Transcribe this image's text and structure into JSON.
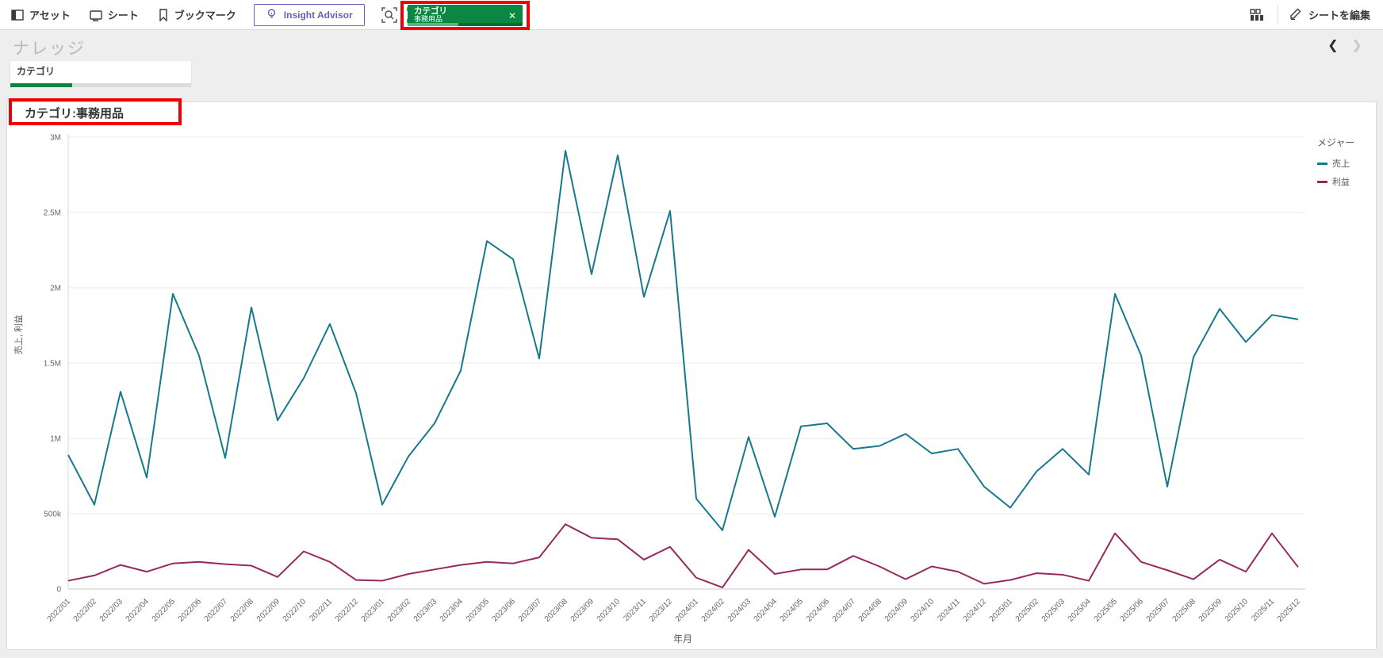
{
  "toolbar": {
    "items": [
      {
        "label": "アセット"
      },
      {
        "label": "シート"
      },
      {
        "label": "ブックマーク"
      }
    ],
    "insight_advisor_label": "Insight Advisor",
    "selection_chip": {
      "field": "カテゴリ",
      "value": "事務用品",
      "close": "✕"
    },
    "edit_sheet_label": "シートを編集"
  },
  "sheet": {
    "title": "ナレッジ",
    "prev": "❮",
    "next": "❯"
  },
  "filter": {
    "label": "カテゴリ"
  },
  "legend": {
    "title": "メジャー"
  },
  "colors": {
    "selection_green": "#0a8742",
    "selection_green_light": "#5cb57f",
    "accent_purple": "#6e5cb8",
    "annotation_red": "#f20000",
    "series_sales": "#17798c",
    "series_profit": "#96295f"
  },
  "chart_data": {
    "type": "line",
    "title": "カテゴリ:事務用品",
    "xlabel": "年月",
    "ylabel": "売上, 利益",
    "ylim": [
      0,
      3000000
    ],
    "ytick_labels": [
      "0",
      "500k",
      "1M",
      "1.5M",
      "2M",
      "2.5M",
      "3M"
    ],
    "grid": true,
    "legend_position": "top-right",
    "x": [
      "2022/01",
      "2022/02",
      "2022/03",
      "2022/04",
      "2022/05",
      "2022/06",
      "2022/07",
      "2022/08",
      "2022/09",
      "2022/10",
      "2022/11",
      "2022/12",
      "2023/01",
      "2023/02",
      "2023/03",
      "2023/04",
      "2023/05",
      "2023/06",
      "2023/07",
      "2023/08",
      "2023/09",
      "2023/10",
      "2023/11",
      "2023/12",
      "2024/01",
      "2024/02",
      "2024/03",
      "2024/04",
      "2024/05",
      "2024/06",
      "2024/07",
      "2024/08",
      "2024/09",
      "2024/10",
      "2024/11",
      "2024/12",
      "2025/01",
      "2025/02",
      "2025/03",
      "2025/04",
      "2025/05",
      "2025/06",
      "2025/07",
      "2025/08",
      "2025/09",
      "2025/10",
      "2025/11",
      "2025/12"
    ],
    "series": [
      {
        "name": "売上",
        "color": "#17798c",
        "values": [
          890000,
          560000,
          1310000,
          740000,
          1960000,
          1550000,
          870000,
          1870000,
          1120000,
          1400000,
          1760000,
          1300000,
          560000,
          880000,
          1100000,
          1450000,
          2310000,
          2190000,
          1530000,
          2910000,
          2090000,
          2880000,
          1940000,
          2510000,
          600000,
          390000,
          1010000,
          480000,
          1080000,
          1100000,
          930000,
          950000,
          1030000,
          900000,
          930000,
          680000,
          540000,
          780000,
          930000,
          760000,
          1960000,
          1550000,
          680000,
          1540000,
          1860000,
          1640000,
          1820000,
          1790000
        ]
      },
      {
        "name": "利益",
        "color": "#96295f",
        "values": [
          55000,
          90000,
          160000,
          115000,
          170000,
          180000,
          165000,
          155000,
          80000,
          250000,
          180000,
          60000,
          55000,
          100000,
          130000,
          160000,
          180000,
          170000,
          210000,
          430000,
          340000,
          330000,
          195000,
          280000,
          75000,
          10000,
          260000,
          100000,
          130000,
          130000,
          220000,
          150000,
          65000,
          150000,
          115000,
          35000,
          60000,
          105000,
          95000,
          55000,
          370000,
          180000,
          125000,
          65000,
          195000,
          115000,
          370000,
          145000
        ]
      }
    ]
  }
}
